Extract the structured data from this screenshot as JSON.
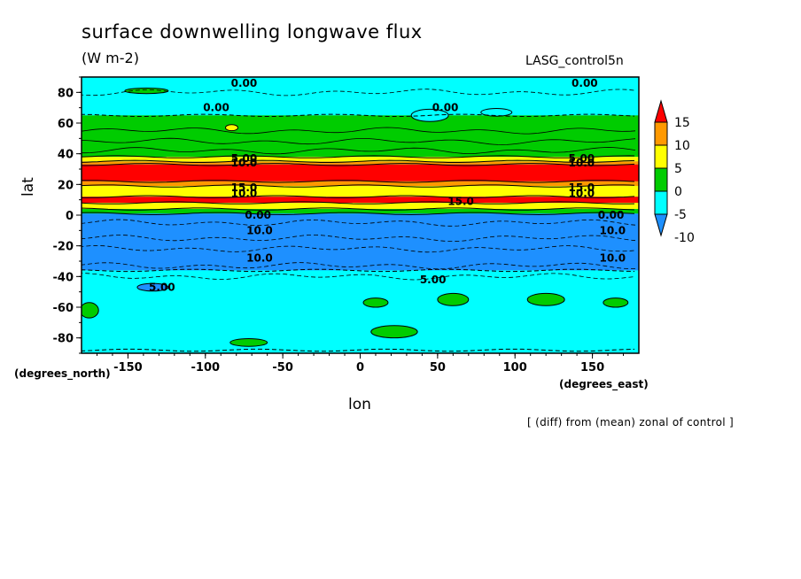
{
  "chart_data": {
    "type": "heatmap",
    "title": "surface downwelling longwave flux",
    "units": "(W m-2)",
    "run_label": "LASG_control5n",
    "xlabel": "lon",
    "ylabel": "lat",
    "x_units": "(degrees_east)",
    "y_units": "(degrees_north)",
    "footnote": "[ (diff) from (mean) zonal of control ]",
    "xlim": [
      -180,
      180
    ],
    "ylim": [
      -90,
      90
    ],
    "x_ticks": [
      "-150",
      "-100",
      "-50",
      "0",
      "50",
      "100",
      "150"
    ],
    "x_tick_values": [
      -150,
      -100,
      -50,
      0,
      50,
      100,
      150
    ],
    "y_ticks": [
      "80",
      "60",
      "40",
      "20",
      "0",
      "-20",
      "-40",
      "-60",
      "-80"
    ],
    "y_tick_values": [
      80,
      60,
      40,
      20,
      0,
      -20,
      -40,
      -60,
      -80
    ],
    "colorbar": {
      "labels": [
        "15",
        "10",
        "5",
        "0",
        "-5",
        "-10"
      ],
      "levels": [
        15,
        10,
        5,
        0,
        -5,
        -10
      ],
      "colors": [
        "#ff0000",
        "#ff9900",
        "#ffff00",
        "#00cc00",
        "#00ffff",
        "#1e90ff"
      ]
    },
    "zonal_bands": [
      {
        "lat_from": 88,
        "lat_to": 65,
        "level": "-5"
      },
      {
        "lat_from": 65,
        "lat_to": 38,
        "level": "0"
      },
      {
        "lat_from": 38,
        "lat_to": 35,
        "level": "5"
      },
      {
        "lat_from": 35,
        "lat_to": 33,
        "level": "10"
      },
      {
        "lat_from": 33,
        "lat_to": 22,
        "level": "15"
      },
      {
        "lat_from": 22,
        "lat_to": 19,
        "level": "10"
      },
      {
        "lat_from": 19,
        "lat_to": 12,
        "level": "5"
      },
      {
        "lat_from": 12,
        "lat_to": 8,
        "level": "15"
      },
      {
        "lat_from": 8,
        "lat_to": 4,
        "level": "5"
      },
      {
        "lat_from": 4,
        "lat_to": 1,
        "level": "0"
      },
      {
        "lat_from": 1,
        "lat_to": -36,
        "level": "-10"
      },
      {
        "lat_from": -36,
        "lat_to": -88,
        "level": "-5"
      }
    ],
    "contour_labels": [
      {
        "text": "0.00",
        "lon": -75,
        "lat": 86
      },
      {
        "text": "0.00",
        "lon": 145,
        "lat": 86
      },
      {
        "text": "0.00",
        "lon": -93,
        "lat": 70
      },
      {
        "text": "0.00",
        "lon": 55,
        "lat": 70
      },
      {
        "text": "5.00",
        "lon": -75,
        "lat": 37
      },
      {
        "text": "10.0",
        "lon": -75,
        "lat": 34
      },
      {
        "text": "5.00",
        "lon": 143,
        "lat": 37
      },
      {
        "text": "10.0",
        "lon": 143,
        "lat": 34
      },
      {
        "text": "15.0",
        "lon": -75,
        "lat": 18
      },
      {
        "text": "10.0",
        "lon": -75,
        "lat": 14
      },
      {
        "text": "15.0",
        "lon": 143,
        "lat": 18
      },
      {
        "text": "10.0",
        "lon": 143,
        "lat": 14
      },
      {
        "text": "15.0",
        "lon": 65,
        "lat": 9
      },
      {
        "text": "0.00",
        "lon": -66,
        "lat": 0
      },
      {
        "text": "0.00",
        "lon": 162,
        "lat": 0
      },
      {
        "text": "10.0",
        "lon": -65,
        "lat": -10
      },
      {
        "text": "10.0",
        "lon": 163,
        "lat": -10
      },
      {
        "text": "10.0",
        "lon": -65,
        "lat": -28
      },
      {
        "text": "10.0",
        "lon": 163,
        "lat": -28
      },
      {
        "text": "5.00",
        "lon": -128,
        "lat": -47
      },
      {
        "text": "5.00",
        "lon": 47,
        "lat": -42
      }
    ],
    "patches": [
      {
        "level": "0",
        "lon": -138,
        "lat": 81,
        "rx": 14,
        "ry": 1.8
      },
      {
        "level": "-5",
        "lon": 45,
        "lat": 65,
        "rx": 12,
        "ry": 4
      },
      {
        "level": "-5",
        "lon": 88,
        "lat": 67,
        "rx": 10,
        "ry": 2.5
      },
      {
        "level": "5",
        "lon": -83,
        "lat": 57,
        "rx": 4,
        "ry": 2
      },
      {
        "level": "0",
        "lon": 60,
        "lat": -55,
        "rx": 10,
        "ry": 4
      },
      {
        "level": "0",
        "lon": 120,
        "lat": -55,
        "rx": 12,
        "ry": 4
      },
      {
        "level": "0",
        "lon": 165,
        "lat": -57,
        "rx": 8,
        "ry": 3
      },
      {
        "level": "0",
        "lon": -175,
        "lat": -62,
        "rx": 6,
        "ry": 5
      },
      {
        "level": "0",
        "lon": -72,
        "lat": -83,
        "rx": 12,
        "ry": 2.5
      },
      {
        "level": "0",
        "lon": 22,
        "lat": -76,
        "rx": 15,
        "ry": 4
      },
      {
        "level": "0",
        "lon": 10,
        "lat": -57,
        "rx": 8,
        "ry": 3
      },
      {
        "level": "-10",
        "lon": -134,
        "lat": -47,
        "rx": 10,
        "ry": 2.5
      }
    ]
  }
}
